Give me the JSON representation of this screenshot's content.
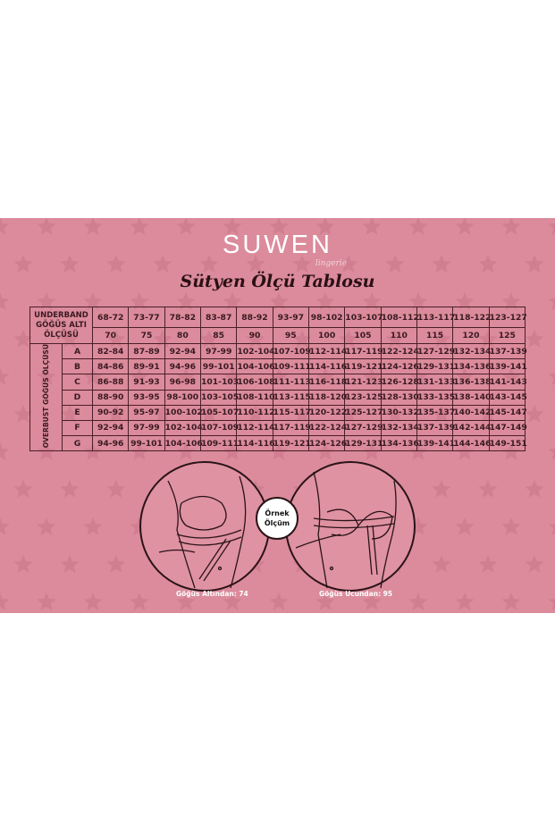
{
  "brand": {
    "logo": "SUWEN",
    "sub": "lingerie",
    "title": "Sütyen Ölçü Tablosu"
  },
  "colors": {
    "background": "#db8b9b",
    "line": "#4a1f2a",
    "star": "#d17f90"
  },
  "table": {
    "corner": [
      "UNDERBAND",
      "GÖĞÜS ALTI",
      "ÖLÇÜSÜ"
    ],
    "side_label": "OVERBUST GÖĞÜS ÖLÇÜSÜ",
    "underband_ranges": [
      "68-72",
      "73-77",
      "78-82",
      "83-87",
      "88-92",
      "93-97",
      "98-102",
      "103-107",
      "108-112",
      "113-117",
      "118-122",
      "123-127"
    ],
    "band_sizes": [
      "70",
      "75",
      "80",
      "85",
      "90",
      "95",
      "100",
      "105",
      "110",
      "115",
      "120",
      "125"
    ],
    "rows": [
      {
        "cup": "A",
        "values": [
          "82-84",
          "87-89",
          "92-94",
          "97-99",
          "102-104",
          "107-109",
          "112-114",
          "117-119",
          "122-124",
          "127-129",
          "132-134",
          "137-139"
        ]
      },
      {
        "cup": "B",
        "values": [
          "84-86",
          "89-91",
          "94-96",
          "99-101",
          "104-106",
          "109-111",
          "114-116",
          "119-121",
          "124-126",
          "129-131",
          "134-136",
          "139-141"
        ]
      },
      {
        "cup": "C",
        "values": [
          "86-88",
          "91-93",
          "96-98",
          "101-103",
          "106-108",
          "111-113",
          "116-118",
          "121-123",
          "126-128",
          "131-133",
          "136-138",
          "141-143"
        ]
      },
      {
        "cup": "D",
        "values": [
          "88-90",
          "93-95",
          "98-100",
          "103-105",
          "108-110",
          "113-115",
          "118-120",
          "123-125",
          "128-130",
          "133-135",
          "138-140",
          "143-145"
        ]
      },
      {
        "cup": "E",
        "values": [
          "90-92",
          "95-97",
          "100-102",
          "105-107",
          "110-112",
          "115-117",
          "120-122",
          "125-127",
          "130-132",
          "135-137",
          "140-142",
          "145-147"
        ]
      },
      {
        "cup": "F",
        "values": [
          "92-94",
          "97-99",
          "102-104",
          "107-109",
          "112-114",
          "117-119",
          "122-124",
          "127-129",
          "132-134",
          "137-139",
          "142-144",
          "147-149"
        ]
      },
      {
        "cup": "G",
        "values": [
          "94-96",
          "99-101",
          "104-106",
          "109-111",
          "114-116",
          "119-121",
          "124-126",
          "129-131",
          "134-136",
          "139-141",
          "144-146",
          "149-151"
        ]
      }
    ]
  },
  "example": {
    "badge_line1": "Örnek",
    "badge_line2": "Ölçüm",
    "caption_left": "Göğüs Altından: 74",
    "caption_right": "Göğüs Ucundan: 95"
  }
}
